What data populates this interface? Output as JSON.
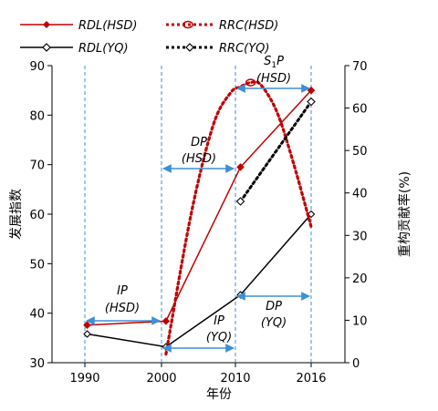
{
  "chart_data": {
    "type": "line",
    "x_categories": [
      "1990",
      "2000",
      "2010",
      "2016"
    ],
    "xlabel": "年份",
    "ylabel_left": "发展指数",
    "ylabel_right": "重构贡献率(%)",
    "ylim_left": [
      30,
      90
    ],
    "ylim_right": [
      0,
      70
    ],
    "yticks_left": [
      "30",
      "40",
      "50",
      "60",
      "70",
      "80",
      "90"
    ],
    "yticks_right": [
      "0",
      "10",
      "20",
      "30",
      "40",
      "50",
      "60",
      "70"
    ],
    "series": [
      {
        "name": "RDL(HSD)",
        "axis": "left",
        "style": "solid",
        "color": "#c00000",
        "points": [
          [
            1990.3,
            37.6
          ],
          [
            2000.6,
            38.4
          ],
          [
            2010.4,
            69.5
          ],
          [
            2016.0,
            85.0
          ]
        ]
      },
      {
        "name": "RDL(YQ)",
        "axis": "left",
        "style": "solid",
        "color": "#000000",
        "points": [
          [
            1990.3,
            35.8
          ],
          [
            2000.6,
            33.2
          ],
          [
            2010.4,
            43.7
          ],
          [
            2016.0,
            60.0
          ]
        ]
      },
      {
        "name": "RRC(HSD)",
        "axis": "right",
        "style": "dotted",
        "color": "#c00000",
        "points": [
          [
            2000.6,
            2.0
          ],
          [
            2004.0,
            35.0
          ],
          [
            2007.0,
            56.0
          ],
          [
            2009.3,
            63.5
          ],
          [
            2010.4,
            65.0
          ],
          [
            2011.2,
            66.0
          ],
          [
            2012.0,
            65.5
          ],
          [
            2013.3,
            59.0
          ],
          [
            2014.6,
            47.0
          ],
          [
            2016.0,
            32.0
          ]
        ]
      },
      {
        "name": "RRC(YQ)",
        "axis": "right",
        "style": "dotted",
        "color": "#000000",
        "points": [
          [
            2010.4,
            38.0
          ],
          [
            2016.0,
            61.5
          ]
        ]
      }
    ],
    "annotations": [
      {
        "line1": "IP",
        "line2": "(HSD)"
      },
      {
        "line1": "DP",
        "line2": "(HSD)"
      },
      {
        "line1": "S1P",
        "line2": "(HSD)"
      },
      {
        "line1": "IP",
        "line2": "(YQ)"
      },
      {
        "line1": "DP",
        "line2": "(YQ)"
      }
    ],
    "grid": false,
    "legend_position": "top"
  }
}
